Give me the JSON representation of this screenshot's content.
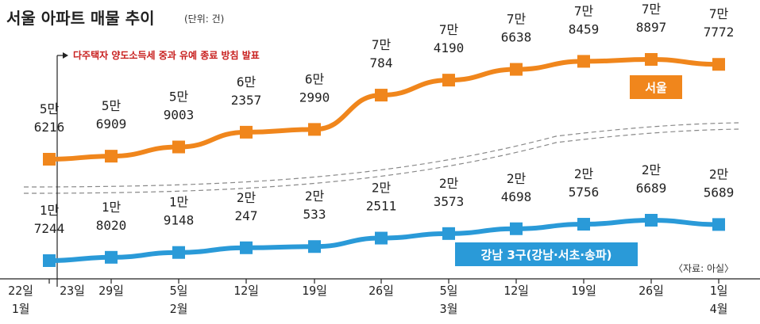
{
  "title": "서울 아파트 매물 추이",
  "unit": "(단위: 건)",
  "annotation": "다주택자 양도소득세 중과 유예 종료 방침 발표",
  "source": "〈자료: 아실〉",
  "colors": {
    "seoul": "#f0861c",
    "gangnam": "#2a9ad8",
    "annotation": "#c8201f"
  },
  "chart_data": {
    "type": "line",
    "x": [
      {
        "day": "22일",
        "month": "1월"
      },
      {
        "day": "29일",
        "month": ""
      },
      {
        "day": "5일",
        "month": "2월"
      },
      {
        "day": "12일",
        "month": ""
      },
      {
        "day": "19일",
        "month": ""
      },
      {
        "day": "26일",
        "month": ""
      },
      {
        "day": "5일",
        "month": "3월"
      },
      {
        "day": "12일",
        "month": ""
      },
      {
        "day": "19일",
        "month": ""
      },
      {
        "day": "26일",
        "month": ""
      },
      {
        "day": "1일",
        "month": "4월"
      }
    ],
    "annotation_tick": "23일",
    "series": [
      {
        "name": "서울",
        "values": [
          56216,
          56909,
          59003,
          62357,
          62990,
          70784,
          74190,
          76638,
          78459,
          78897,
          77772
        ],
        "labels": [
          [
            "5만",
            "6216"
          ],
          [
            "5만",
            "6909"
          ],
          [
            "5만",
            "9003"
          ],
          [
            "6만",
            "2357"
          ],
          [
            "6만",
            "2990"
          ],
          [
            "7만",
            "784"
          ],
          [
            "7만",
            "4190"
          ],
          [
            "7만",
            "6638"
          ],
          [
            "7만",
            "8459"
          ],
          [
            "7만",
            "8897"
          ],
          [
            "7만",
            "7772"
          ]
        ]
      },
      {
        "name": "강남 3구(강남·서초·송파)",
        "values": [
          17244,
          18020,
          19148,
          20247,
          20533,
          22511,
          23573,
          24698,
          25756,
          26689,
          25689
        ],
        "labels": [
          [
            "1만",
            "7244"
          ],
          [
            "1만",
            "8020"
          ],
          [
            "1만",
            "9148"
          ],
          [
            "2만",
            "247"
          ],
          [
            "2만",
            "533"
          ],
          [
            "2만",
            "2511"
          ],
          [
            "2만",
            "3573"
          ],
          [
            "2만",
            "4698"
          ],
          [
            "2만",
            "5756"
          ],
          [
            "2만",
            "6689"
          ],
          [
            "2만",
            "5689"
          ]
        ]
      }
    ]
  }
}
